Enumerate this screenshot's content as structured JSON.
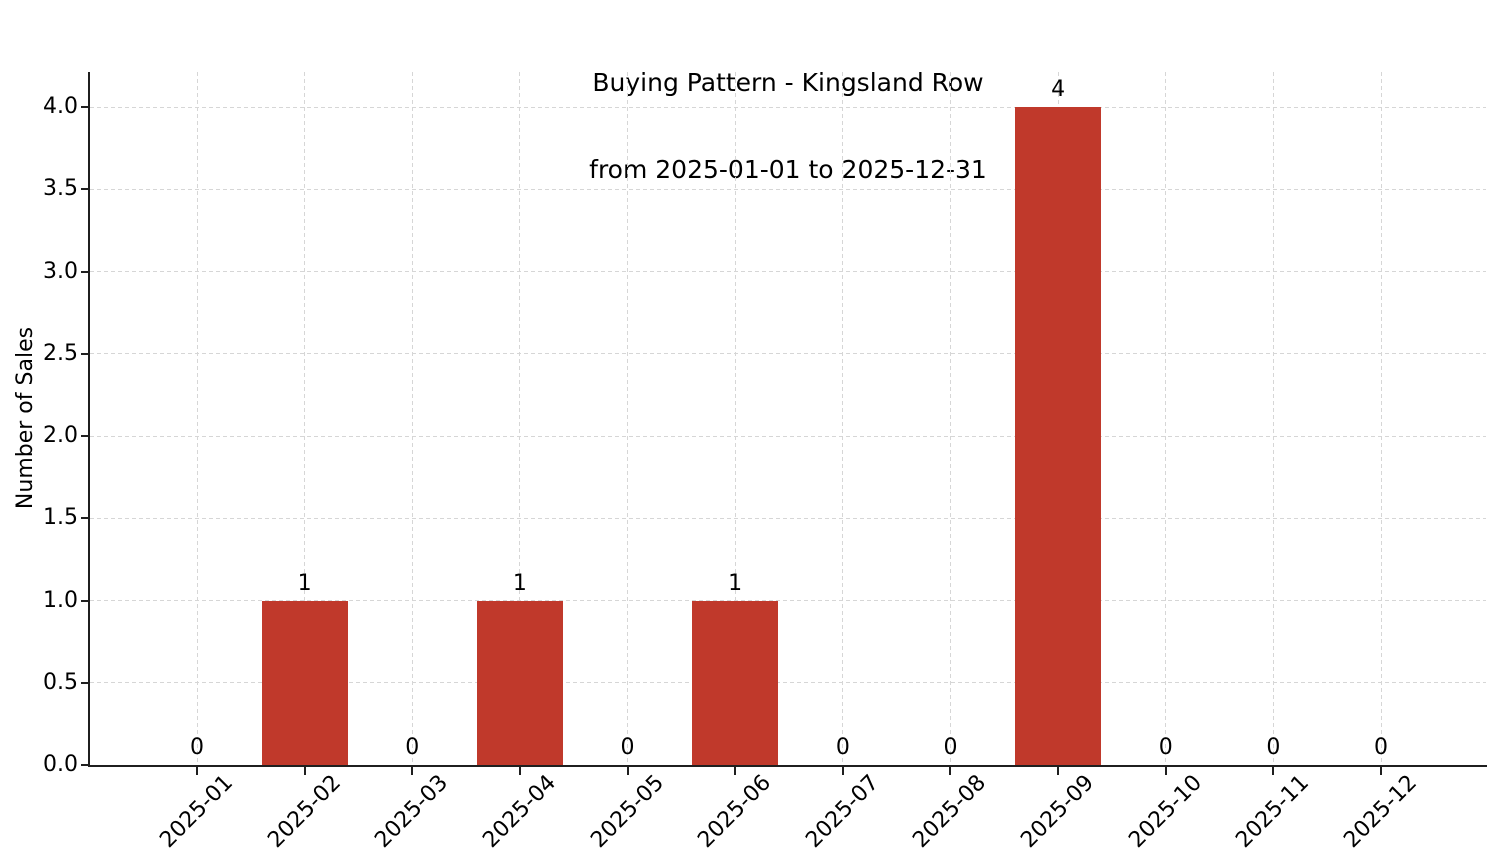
{
  "chart_data": {
    "type": "bar",
    "title": "Buying Pattern - Kingsland Row",
    "subtitle": "from 2025-01-01 to 2025-12-31",
    "categories": [
      "2025-01",
      "2025-02",
      "2025-03",
      "2025-04",
      "2025-05",
      "2025-06",
      "2025-07",
      "2025-08",
      "2025-09",
      "2025-10",
      "2025-11",
      "2025-12"
    ],
    "values": [
      0,
      1,
      0,
      1,
      0,
      1,
      0,
      0,
      4,
      0,
      0,
      0
    ],
    "bar_labels": [
      "0",
      "1",
      "0",
      "1",
      "0",
      "1",
      "0",
      "0",
      "4",
      "0",
      "0",
      "0"
    ],
    "xlabel": "",
    "ylabel": "Number of Sales",
    "ylim": [
      0,
      4.2
    ],
    "ytick_labels": [
      "0.0",
      "0.5",
      "1.0",
      "1.5",
      "2.0",
      "2.5",
      "3.0",
      "3.5",
      "4.0"
    ],
    "grid": "dashed",
    "legend_position": "none",
    "bar_color": "#c0392b",
    "grid_color": "#d6d6d6",
    "axis_color": "#1f1f1f",
    "text_color": "#000000"
  }
}
